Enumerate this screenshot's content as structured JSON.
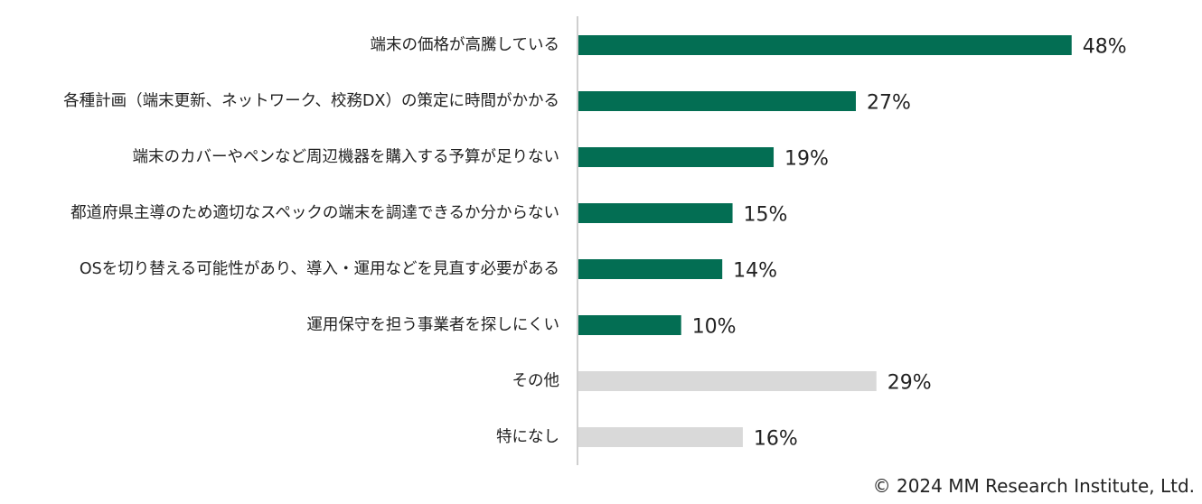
{
  "chart_data": {
    "type": "bar",
    "orientation": "horizontal",
    "categories": [
      "端末の価格が高騰している",
      "各種計画（端末更新、ネットワーク、校務DX）の策定に時間がかかる",
      "端末のカバーやペンなど周辺機器を購入する予算が足りない",
      "都道府県主導のため適切なスペックの端末を調達できるか分からない",
      "OSを切り替える可能性があり、導入・運用などを見直す必要がある",
      "運用保守を担う事業者を探しにくい",
      "その他",
      "特になし"
    ],
    "values": [
      48,
      27,
      19,
      15,
      14,
      10,
      29,
      16
    ],
    "value_labels": [
      "48%",
      "27%",
      "19%",
      "15%",
      "14%",
      "10%",
      "29%",
      "16%"
    ],
    "unit": "%",
    "xlim": [
      0,
      60
    ],
    "grid": false,
    "legend": "none",
    "colors": [
      "#036e53",
      "#036e53",
      "#036e53",
      "#036e53",
      "#036e53",
      "#036e53",
      "#d9d9d9",
      "#d9d9d9"
    ],
    "axis_color": "#bfbfbf"
  },
  "footer": {
    "copyright": "© 2024 MM Research Institute, Ltd."
  }
}
